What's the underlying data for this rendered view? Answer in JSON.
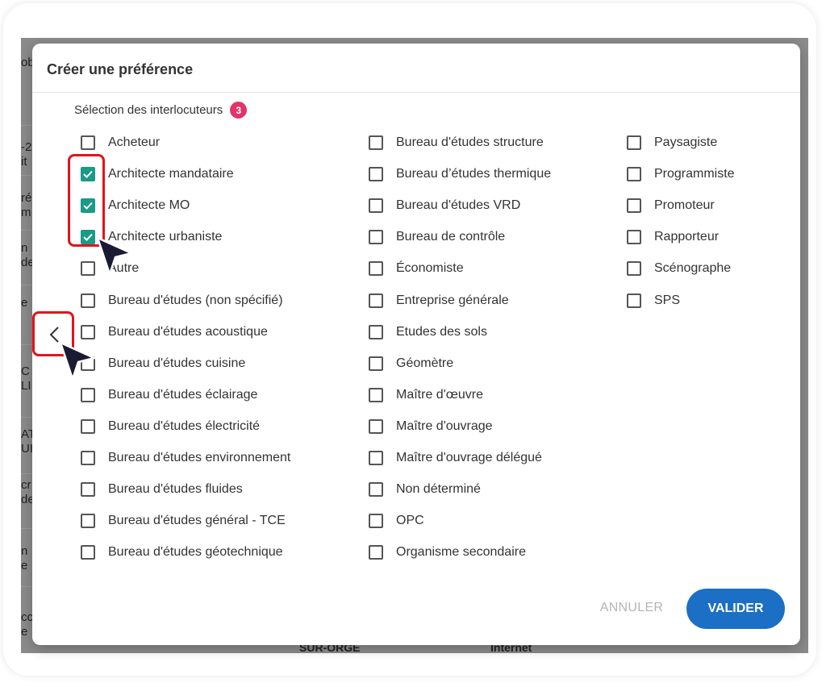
{
  "dialog": {
    "title": "Créer une préférence",
    "section_label": "Sélection des interlocuteurs",
    "selected_count": "3",
    "cancel_label": "ANNULER",
    "validate_label": "VALIDER"
  },
  "columns": [
    [
      {
        "label": "Acheteur",
        "checked": false
      },
      {
        "label": "Architecte mandataire",
        "checked": true
      },
      {
        "label": "Architecte MO",
        "checked": true
      },
      {
        "label": "Architecte urbaniste",
        "checked": true
      },
      {
        "label": "Autre",
        "checked": false
      },
      {
        "label": "Bureau d'études (non spécifié)",
        "checked": false
      },
      {
        "label": "Bureau d'études acoustique",
        "checked": false
      },
      {
        "label": "Bureau d'études cuisine",
        "checked": false
      },
      {
        "label": "Bureau d'études éclairage",
        "checked": false
      },
      {
        "label": "Bureau d'études électricité",
        "checked": false
      },
      {
        "label": "Bureau d'études environnement",
        "checked": false
      },
      {
        "label": "Bureau d'études fluides",
        "checked": false
      },
      {
        "label": "Bureau d'études général - TCE",
        "checked": false
      },
      {
        "label": "Bureau d'études géotechnique",
        "checked": false
      }
    ],
    [
      {
        "label": "Bureau d'études structure",
        "checked": false
      },
      {
        "label": "Bureau d’études thermique",
        "checked": false
      },
      {
        "label": "Bureau d'études VRD",
        "checked": false
      },
      {
        "label": "Bureau de contrôle",
        "checked": false
      },
      {
        "label": "Économiste",
        "checked": false
      },
      {
        "label": "Entreprise générale",
        "checked": false
      },
      {
        "label": "Etudes des sols",
        "checked": false
      },
      {
        "label": "Géomètre",
        "checked": false
      },
      {
        "label": "Maître d'œuvre",
        "checked": false
      },
      {
        "label": "Maître d'ouvrage",
        "checked": false
      },
      {
        "label": "Maître d'ouvrage délégué",
        "checked": false
      },
      {
        "label": "Non déterminé",
        "checked": false
      },
      {
        "label": "OPC",
        "checked": false
      },
      {
        "label": "Organisme secondaire",
        "checked": false
      }
    ],
    [
      {
        "label": "Paysagiste",
        "checked": false
      },
      {
        "label": "Programmiste",
        "checked": false
      },
      {
        "label": "Promoteur",
        "checked": false
      },
      {
        "label": "Rapporteur",
        "checked": false
      },
      {
        "label": "Scénographe",
        "checked": false
      },
      {
        "label": "SPS",
        "checked": false
      }
    ]
  ],
  "background": {
    "fragments": [
      "ob",
      "-2",
      "it",
      "ré",
      "m",
      "n",
      "de",
      "e",
      "C",
      "LI",
      "AT",
      "UI",
      "cr",
      "de",
      "n",
      "e",
      "cc",
      "e"
    ],
    "bottom_left": "SUR-ORGE",
    "bottom_right": "Internet"
  },
  "colors": {
    "checkbox_checked": "#1a9a87",
    "badge": "#e3336b",
    "primary_button": "#1b6fc4",
    "highlight": "#e3131b"
  },
  "icons": {
    "prev": "chevron-left-icon",
    "check": "check-icon",
    "cursor": "mouse-pointer-icon"
  }
}
